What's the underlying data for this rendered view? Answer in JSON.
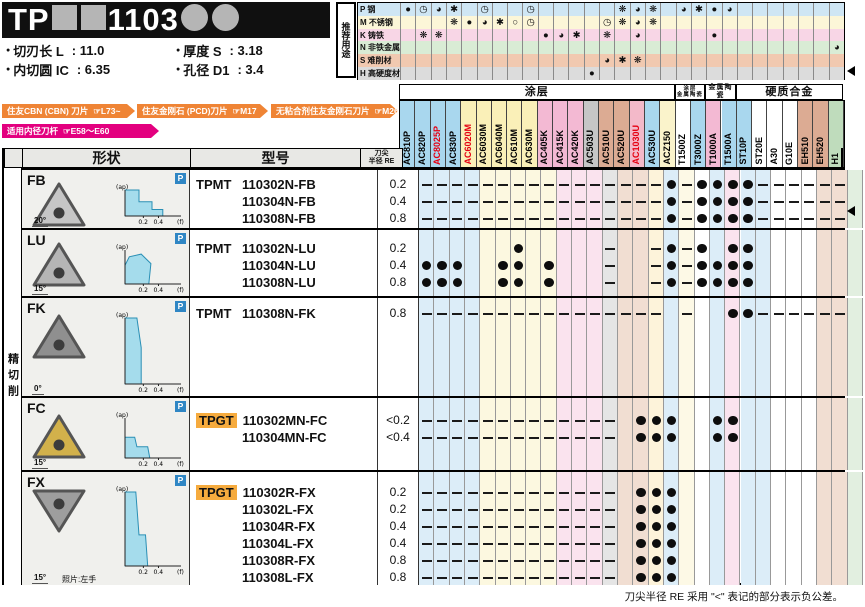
{
  "title": {
    "prefix": "TP",
    "code": "1103",
    "square_count": 2,
    "circle_count": 2
  },
  "specs": [
    {
      "label": "切刃长 L",
      "value": ": 11.0"
    },
    {
      "label": "厚度 S",
      "value": ": 3.18"
    },
    {
      "label": "内切圆 IC",
      "value": ": 6.35"
    },
    {
      "label": "孔径 D1",
      "value": ": 3.4"
    }
  ],
  "ribbons": [
    {
      "text": "住友CBN (CBN) 刀片",
      "ref": "☞L73~",
      "color": "#ef8435"
    },
    {
      "text": "住友金刚石 (PCD)刀片",
      "ref": "☞M17",
      "color": "#ef8435"
    },
    {
      "text": "无粘合剂住友金刚石刀片",
      "ref": "☞M26",
      "color": "#ef8435"
    },
    {
      "text": "适用内径刀杆",
      "ref": "☞E58～E60",
      "color": "#e3007f"
    }
  ],
  "usage": {
    "title": "推荐用途",
    "symbol_chars": {
      "f": "●",
      "q": "◕",
      "c": "◷",
      "s": "✱",
      "g": "❋",
      "o": "○"
    },
    "rows": [
      {
        "code": "P",
        "label": "钢",
        "color": "#cfe6f4",
        "marks": {
          "0": "f",
          "1": "c",
          "2": "q",
          "3": "s",
          "5": "c",
          "8": "c",
          "14": "g",
          "15": "q",
          "16": "g",
          "18": "q",
          "19": "s",
          "20": "f",
          "21": "q"
        }
      },
      {
        "code": "M",
        "label": "不锈钢",
        "color": "#fcf6d8",
        "marks": {
          "3": "g",
          "4": "f",
          "5": "q",
          "6": "s",
          "7": "o",
          "8": "c",
          "13": "c",
          "14": "g",
          "15": "q",
          "16": "g"
        }
      },
      {
        "code": "K",
        "label": "铸铁",
        "color": "#f8d6e6",
        "marks": {
          "1": "g",
          "2": "g",
          "9": "f",
          "10": "q",
          "11": "s",
          "13": "g",
          "15": "q",
          "20": "f"
        }
      },
      {
        "code": "N",
        "label": "非铁金属",
        "color": "#d9ecd5",
        "marks": {
          "28": "q"
        }
      },
      {
        "code": "S",
        "label": "难削材",
        "color": "#f1c9b0",
        "marks": {
          "13": "q",
          "14": "s",
          "15": "g"
        }
      },
      {
        "code": "H",
        "label": "高硬度材料",
        "color": "#dcdcdc",
        "marks": {
          "12": "f"
        }
      }
    ]
  },
  "grade_groups": [
    {
      "lines": [
        "涂层"
      ],
      "from": 0,
      "to": 17,
      "font": 11
    },
    {
      "lines": [
        "涂层",
        "金属陶瓷"
      ],
      "from": 18,
      "to": 19,
      "font": 5.5
    },
    {
      "lines": [
        "金属陶瓷"
      ],
      "from": 20,
      "to": 21,
      "font": 7
    },
    {
      "lines": [
        "硬质合金"
      ],
      "from": 22,
      "to": 28,
      "font": 11
    }
  ],
  "grades": [
    {
      "name": "AC810P",
      "bg": "#a9d7ee",
      "body": "#dcedf8",
      "fg": "#000000"
    },
    {
      "name": "AC820P",
      "bg": "#a9d7ee",
      "body": "#dcedf8",
      "fg": "#000000"
    },
    {
      "name": "AC8025P",
      "bg": "#a9d7ee",
      "body": "#dcedf8",
      "fg": "#e60012"
    },
    {
      "name": "AC830P",
      "bg": "#a9d7ee",
      "body": "#dcedf8",
      "fg": "#000000"
    },
    {
      "name": "AC6020M",
      "bg": "#faf0b8",
      "body": "#fcf8e0",
      "fg": "#e60012"
    },
    {
      "name": "AC6030M",
      "bg": "#faf0b8",
      "body": "#fcf8e0",
      "fg": "#000000"
    },
    {
      "name": "AC6040M",
      "bg": "#faf0b8",
      "body": "#fcf8e0",
      "fg": "#000000"
    },
    {
      "name": "AC610M",
      "bg": "#faf0b8",
      "body": "#fcf8e0",
      "fg": "#000000"
    },
    {
      "name": "AC630M",
      "bg": "#faf0b8",
      "body": "#fcf8e0",
      "fg": "#000000"
    },
    {
      "name": "AC405K",
      "bg": "#f3b9d3",
      "body": "#fae3ee",
      "fg": "#000000"
    },
    {
      "name": "AC415K",
      "bg": "#f3b9d3",
      "body": "#fae3ee",
      "fg": "#000000"
    },
    {
      "name": "AC420K",
      "bg": "#f3b9d3",
      "body": "#fae3ee",
      "fg": "#000000"
    },
    {
      "name": "AC503U",
      "bg": "#c6c6c6",
      "body": "#e5e5e5",
      "fg": "#000000"
    },
    {
      "name": "AC510U",
      "bg": "#dcab93",
      "body": "#f1ded2",
      "fg": "#000000"
    },
    {
      "name": "AC520U",
      "bg": "#dcab93",
      "body": "#f1ded2",
      "fg": "#000000"
    },
    {
      "name": "AC1030U",
      "bg": "#f3b9c9",
      "body": "#fdf3da",
      "fg": "#e60012"
    },
    {
      "name": "AC530U",
      "bg": "#a9d7ee",
      "body": "#dcedf8",
      "fg": "#000000"
    },
    {
      "name": "ACZ150",
      "bg": "#faf3cb",
      "body": "#fdf9e6",
      "fg": "#000000"
    },
    {
      "name": "T1500Z",
      "bg": "#ffffff",
      "body": "#ffffff",
      "fg": "#000000"
    },
    {
      "name": "T3000Z",
      "bg": "#a9d7ee",
      "body": "#dcedf8",
      "fg": "#000000"
    },
    {
      "name": "T1000A",
      "bg": "#f3b9d3",
      "body": "#fae3ee",
      "fg": "#000000"
    },
    {
      "name": "T1500A",
      "bg": "#a9d7ee",
      "body": "#dcedf8",
      "fg": "#000000"
    },
    {
      "name": "ST10P",
      "bg": "#a9d7ee",
      "body": "#dcedf8",
      "fg": "#000000"
    },
    {
      "name": "ST20E",
      "bg": "#ffffff",
      "body": "#ffffff",
      "fg": "#000000"
    },
    {
      "name": "A30",
      "bg": "#ffffff",
      "body": "#ffffff",
      "fg": "#000000"
    },
    {
      "name": "G10E",
      "bg": "#ffffff",
      "body": "#ffffff",
      "fg": "#000000"
    },
    {
      "name": "EH510",
      "bg": "#dcab93",
      "body": "#f1ded2",
      "fg": "#000000"
    },
    {
      "name": "EH520",
      "bg": "#dcab93",
      "body": "#f1ded2",
      "fg": "#000000"
    },
    {
      "name": "H1",
      "bg": "#bfdcbc",
      "body": "#e2efe0",
      "fg": "#000000"
    }
  ],
  "table": {
    "left_label": "精切削",
    "headers": {
      "shape": "形状",
      "model": "型号",
      "re_line1": "刀尖",
      "re_line2": "半径 RE"
    },
    "chart": {
      "y_label": "(ap)",
      "x_label": "(f)",
      "x_ticks": [
        "0.2",
        "0.4"
      ],
      "badge": "P"
    },
    "blocks": [
      {
        "shape": "FB",
        "angle": "20°",
        "insert_color": "#c6c6c6",
        "insert_down": false,
        "rows": [
          {
            "prefix": "TPMT",
            "num": "110302N-FB",
            "re": "0.2",
            "dots": [
              16,
              18,
              19,
              20,
              21
            ],
            "dashes": [
              0,
              1,
              2,
              3,
              4,
              5,
              6,
              7,
              8,
              9,
              10,
              11,
              12,
              13,
              14,
              15,
              17,
              22,
              23,
              24,
              25,
              26,
              27
            ]
          },
          {
            "num": "110304N-FB",
            "re": "0.4",
            "dots": [
              16,
              18,
              19,
              20,
              21
            ],
            "dashes": [
              0,
              1,
              2,
              3,
              4,
              5,
              6,
              7,
              8,
              9,
              10,
              11,
              12,
              13,
              14,
              15,
              17,
              22,
              23,
              24,
              25,
              26,
              27
            ]
          },
          {
            "num": "110308N-FB",
            "re": "0.8",
            "dots": [
              16,
              18,
              19,
              20,
              21
            ],
            "dashes": [
              0,
              1,
              2,
              3,
              4,
              5,
              6,
              7,
              8,
              9,
              10,
              11,
              12,
              13,
              14,
              15,
              17,
              22,
              23,
              24,
              25,
              26,
              27
            ]
          }
        ]
      },
      {
        "shape": "LU",
        "angle": "15°",
        "insert_color": "#b5b5b5",
        "insert_down": false,
        "rows": [
          {
            "prefix": "TPMT",
            "num": "110302N-LU",
            "re": "0.2",
            "dots": [
              6,
              16,
              18,
              20,
              21
            ],
            "dashes": [
              12,
              15,
              17
            ]
          },
          {
            "num": "110304N-LU",
            "re": "0.4",
            "dots": [
              0,
              1,
              2,
              5,
              6,
              8,
              16,
              18,
              19,
              20,
              21
            ],
            "dashes": [
              12,
              15,
              17
            ]
          },
          {
            "num": "110308N-LU",
            "re": "0.8",
            "dots": [
              0,
              1,
              2,
              5,
              6,
              8,
              16,
              18,
              19,
              20,
              21
            ],
            "dashes": [
              12,
              15,
              17
            ]
          }
        ]
      },
      {
        "shape": "FK",
        "angle": "0°",
        "insert_color": "#8f8f8f",
        "insert_down": false,
        "rows": [
          {
            "prefix": "TPMT",
            "num": "110308N-FK",
            "re": "0.8",
            "dots": [
              20,
              21
            ],
            "dashes": [
              0,
              1,
              2,
              3,
              4,
              5,
              6,
              7,
              8,
              9,
              10,
              11,
              12,
              13,
              14,
              15,
              17,
              22,
              23,
              24,
              25,
              26,
              27
            ]
          }
        ]
      },
      {
        "shape": "FC",
        "angle": "15°",
        "insert_color": "#d2b14b",
        "insert_down": false,
        "rows": [
          {
            "prefix": "TPGT",
            "prefix_highlight": true,
            "num": "110302MN-FC",
            "re": "<0.2",
            "dots": [
              14,
              15,
              16,
              19,
              20
            ],
            "dashes": [
              0,
              1,
              2,
              3,
              4,
              5,
              6,
              7,
              8,
              9,
              10,
              11,
              12
            ]
          },
          {
            "num": "110304MN-FC",
            "re": "<0.4",
            "dots": [
              14,
              15,
              16,
              19,
              20
            ],
            "dashes": [
              0,
              1,
              2,
              3,
              4,
              5,
              6,
              7,
              8,
              9,
              10,
              11,
              12
            ]
          }
        ]
      },
      {
        "shape": "FX",
        "angle": "15°",
        "note": "照片:左手",
        "insert_color": "#9e9e9e",
        "insert_down": true,
        "rows": [
          {
            "prefix": "TPGT",
            "prefix_highlight": true,
            "num": "110302R-FX",
            "re": "0.2",
            "dots": [
              14,
              15,
              16
            ],
            "dashes": [
              0,
              1,
              2,
              3,
              4,
              5,
              6,
              7,
              8,
              9,
              10,
              11,
              12
            ]
          },
          {
            "num": "110302L-FX",
            "re": "0.2",
            "dots": [
              14,
              15,
              16
            ],
            "dashes": [
              0,
              1,
              2,
              3,
              4,
              5,
              6,
              7,
              8,
              9,
              10,
              11,
              12
            ]
          },
          {
            "num": "110304R-FX",
            "re": "0.4",
            "dots": [
              14,
              15,
              16
            ],
            "dashes": [
              0,
              1,
              2,
              3,
              4,
              5,
              6,
              7,
              8,
              9,
              10,
              11,
              12
            ]
          },
          {
            "num": "110304L-FX",
            "re": "0.4",
            "dots": [
              14,
              15,
              16
            ],
            "dashes": [
              0,
              1,
              2,
              3,
              4,
              5,
              6,
              7,
              8,
              9,
              10,
              11,
              12
            ]
          },
          {
            "num": "110308R-FX",
            "re": "0.8",
            "dots": [
              14,
              15,
              16
            ],
            "dashes": [
              0,
              1,
              2,
              3,
              4,
              5,
              6,
              7,
              8,
              9,
              10,
              11,
              12
            ]
          },
          {
            "num": "110308L-FX",
            "re": "0.8",
            "dots": [
              14,
              15,
              16
            ],
            "dashes": [
              0,
              1,
              2,
              3,
              4,
              5,
              6,
              7,
              8,
              9,
              10,
              11,
              12
            ]
          }
        ]
      }
    ]
  },
  "footer_note": "刀尖半径 RE 采用 \"<\" 表记的部分表示负公差。"
}
